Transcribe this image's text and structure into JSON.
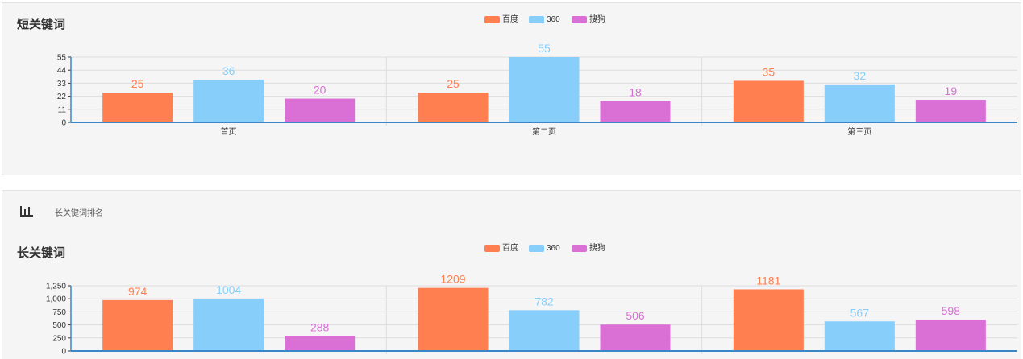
{
  "section_header": {
    "text": "长关键词排名"
  },
  "chart_data": [
    {
      "type": "bar",
      "title": "短关键词",
      "categories": [
        "首页",
        "第二页",
        "第三页"
      ],
      "series": [
        {
          "name": "百度",
          "values": [
            25,
            25,
            35
          ]
        },
        {
          "name": "360",
          "values": [
            36,
            55,
            32
          ]
        },
        {
          "name": "搜狗",
          "values": [
            20,
            18,
            19
          ]
        }
      ],
      "ylim": [
        0,
        55
      ],
      "yticks": [
        "0",
        "11",
        "22",
        "33",
        "44",
        "55"
      ],
      "legend_position": "top-center",
      "grid": true
    },
    {
      "type": "bar",
      "title": "长关键词",
      "categories": [
        "首页",
        "第二页",
        "第三页"
      ],
      "series": [
        {
          "name": "百度",
          "values": [
            974,
            1209,
            1181
          ]
        },
        {
          "name": "360",
          "values": [
            1004,
            782,
            567
          ]
        },
        {
          "name": "搜狗",
          "values": [
            288,
            506,
            598
          ]
        }
      ],
      "ylim": [
        0,
        1250
      ],
      "yticks": [
        "0",
        "250",
        "500",
        "750",
        "1,000",
        "1,250"
      ],
      "legend_position": "top-center",
      "grid": true
    }
  ],
  "colors": {
    "百度": "#ff7f50",
    "360": "#87cefa",
    "搜狗": "#da70d6",
    "axis": "#3a87c8",
    "grid": "#dddddd"
  }
}
